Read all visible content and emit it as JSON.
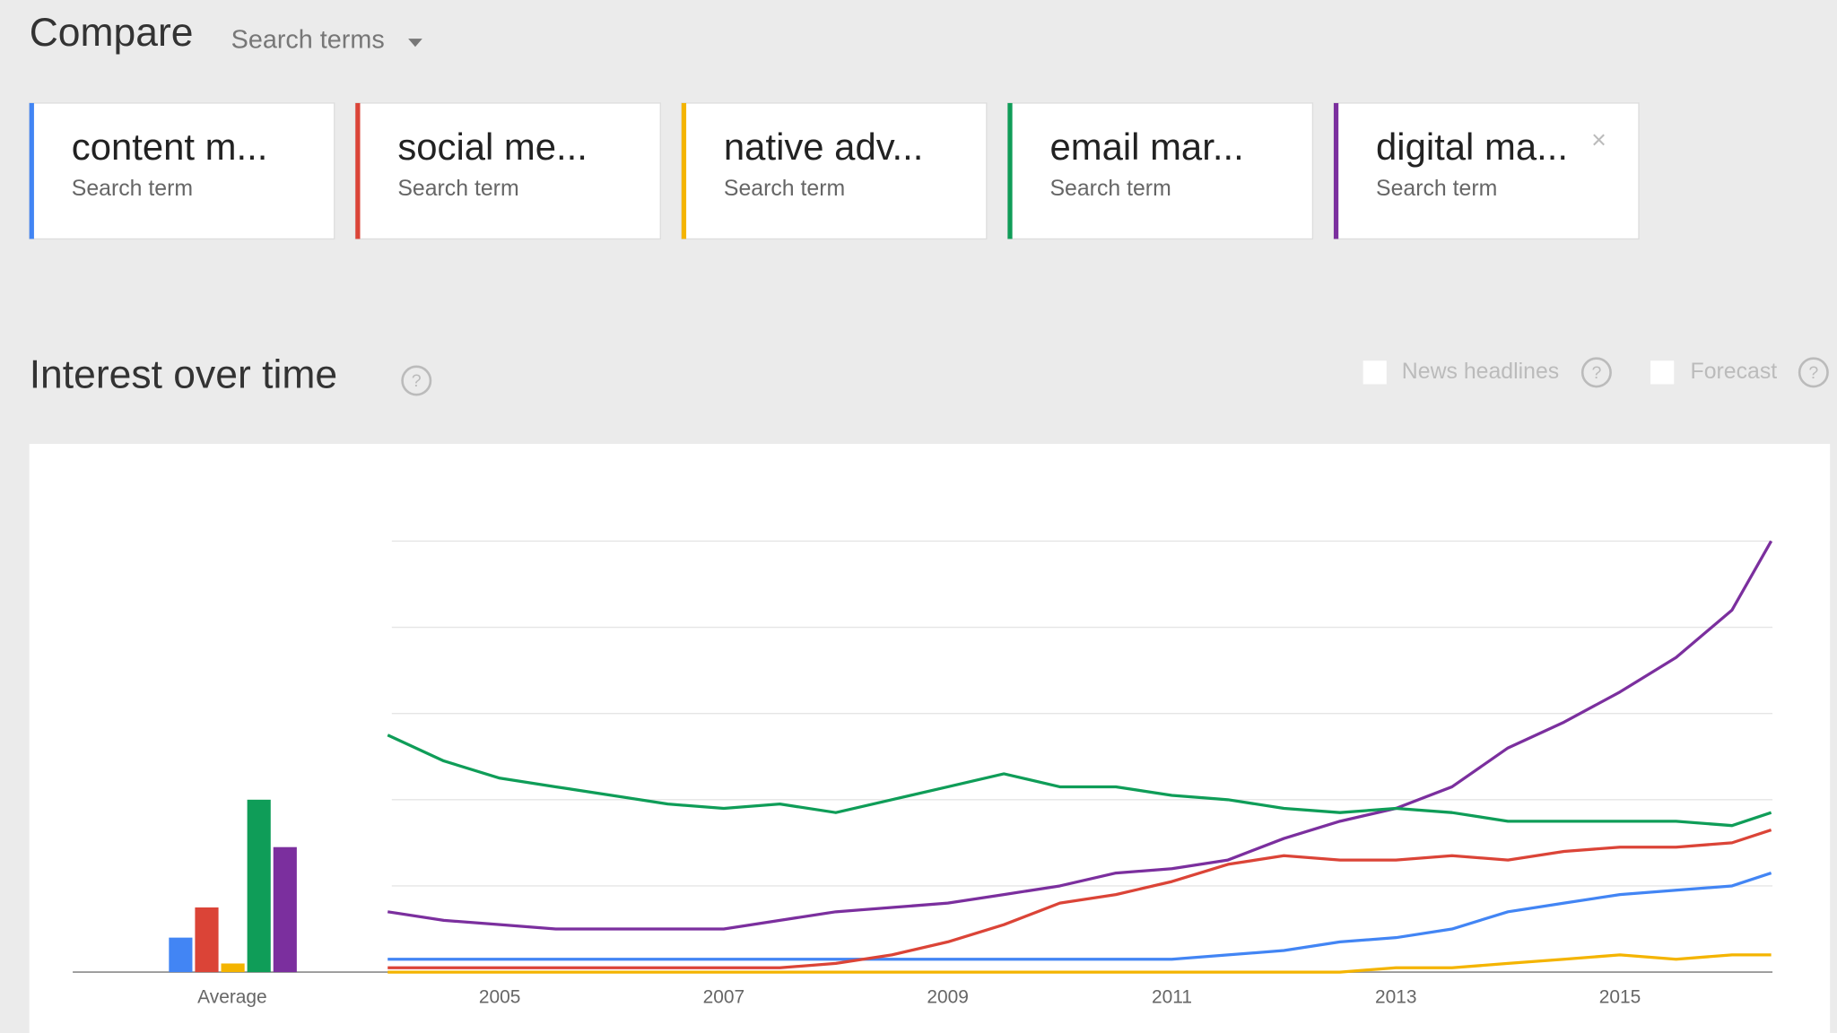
{
  "header": {
    "title": "Compare",
    "dropdown": "Search terms"
  },
  "help_icon": "?",
  "close_icon": "×",
  "section": {
    "title": "Interest over time",
    "options": [
      "News headlines",
      "Forecast"
    ]
  },
  "chart_data": {
    "type": "line",
    "average_label": "Average",
    "x": [
      2004,
      2004.5,
      2005,
      2005.5,
      2006,
      2006.5,
      2007,
      2007.5,
      2008,
      2008.5,
      2009,
      2009.5,
      2010,
      2010.5,
      2011,
      2011.5,
      2012,
      2012.5,
      2013,
      2013.5,
      2014,
      2014.5,
      2015,
      2015.5,
      2016,
      2016.35
    ],
    "xlim": [
      2004,
      2016.4
    ],
    "xticks": [
      2005,
      2007,
      2009,
      2011,
      2013,
      2015
    ],
    "ylim": [
      0,
      100
    ],
    "yticks": [
      0,
      20,
      40,
      60,
      80,
      100
    ],
    "grid": true,
    "series": [
      {
        "name": "content m...",
        "subtitle": "Search term",
        "color": "#4285f4",
        "average": 8,
        "values": [
          3,
          3,
          3,
          3,
          3,
          3,
          3,
          3,
          3,
          3,
          3,
          3,
          3,
          3,
          3,
          4,
          5,
          7,
          8,
          10,
          14,
          16,
          18,
          19,
          20,
          23
        ]
      },
      {
        "name": "social me...",
        "subtitle": "Search term",
        "color": "#db4437",
        "average": 15,
        "values": [
          1,
          1,
          1,
          1,
          1,
          1,
          1,
          1,
          2,
          4,
          7,
          11,
          16,
          18,
          21,
          25,
          27,
          26,
          26,
          27,
          26,
          28,
          29,
          29,
          30,
          33
        ]
      },
      {
        "name": "native adv...",
        "subtitle": "Search term",
        "color": "#f4b400",
        "average": 2,
        "values": [
          0,
          0,
          0,
          0,
          0,
          0,
          0,
          0,
          0,
          0,
          0,
          0,
          0,
          0,
          0,
          0,
          0,
          0,
          1,
          1,
          2,
          3,
          4,
          3,
          4,
          4
        ]
      },
      {
        "name": "email mar...",
        "subtitle": "Search term",
        "color": "#0f9d58",
        "average": 40,
        "values": [
          55,
          49,
          45,
          43,
          41,
          39,
          38,
          39,
          37,
          40,
          43,
          46,
          43,
          43,
          41,
          40,
          38,
          37,
          38,
          37,
          35,
          35,
          35,
          35,
          34,
          37
        ]
      },
      {
        "name": "digital ma...",
        "subtitle": "Search term",
        "color": "#7b2f9e",
        "average": 29,
        "values": [
          14,
          12,
          11,
          10,
          10,
          10,
          10,
          12,
          14,
          15,
          16,
          18,
          20,
          23,
          24,
          26,
          31,
          35,
          38,
          43,
          52,
          58,
          65,
          73,
          84,
          100
        ]
      }
    ]
  }
}
